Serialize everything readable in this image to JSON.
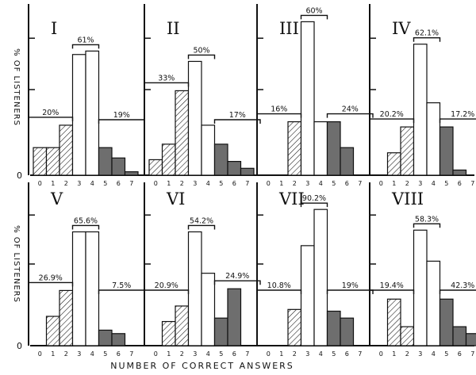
{
  "x_axis_label": "NUMBER OF CORRECT ANSWERS",
  "y_axis_label": "% OF LISTENERS",
  "y_zero_label": "0",
  "colors": {
    "ink": "#111111",
    "dark_bar": "#6e6e6e",
    "light_bar": "#ffffff"
  },
  "chart_data": [
    {
      "type": "bar",
      "title": "I",
      "categories": [
        "0",
        "1",
        "2",
        "3",
        "4",
        "5",
        "6",
        "7"
      ],
      "values": [
        8,
        8,
        14.5,
        35,
        36,
        8,
        5,
        1
      ],
      "annotations": [
        "20%",
        "61%",
        "19%"
      ]
    },
    {
      "type": "bar",
      "title": "II",
      "categories": [
        "0",
        "1",
        "2",
        "3",
        "4",
        "5",
        "6",
        "7"
      ],
      "values": [
        4.5,
        9,
        24.5,
        33,
        14.5,
        9,
        4,
        2
      ],
      "annotations": [
        "33%",
        "50%",
        "17%"
      ]
    },
    {
      "type": "bar",
      "title": "III",
      "categories": [
        "0",
        "1",
        "2",
        "3",
        "4",
        "5",
        "6",
        "7"
      ],
      "values": [
        0,
        0,
        15.5,
        44.5,
        15.5,
        15.5,
        8,
        0
      ],
      "annotations": [
        "16%",
        "60%",
        "24%"
      ]
    },
    {
      "type": "bar",
      "title": "IV",
      "categories": [
        "0",
        "1",
        "2",
        "3",
        "4",
        "5",
        "6",
        "7"
      ],
      "values": [
        0,
        6.5,
        14,
        38,
        21,
        14,
        1.5,
        0
      ],
      "annotations": [
        "20.2%",
        "62.1%",
        "17.2%"
      ]
    },
    {
      "type": "bar",
      "title": "V",
      "categories": [
        "0",
        "1",
        "2",
        "3",
        "4",
        "5",
        "6",
        "7"
      ],
      "values": [
        0,
        8.5,
        16,
        33,
        33,
        4.5,
        3.5,
        0
      ],
      "annotations": [
        "26.9%",
        "65.6%",
        "7.5%"
      ]
    },
    {
      "type": "bar",
      "title": "VI",
      "categories": [
        "0",
        "1",
        "2",
        "3",
        "4",
        "5",
        "6",
        "7"
      ],
      "values": [
        0,
        7,
        11.5,
        33,
        21,
        8,
        16.5,
        0
      ],
      "annotations": [
        "20.9%",
        "54.2%",
        "24.9%"
      ]
    },
    {
      "type": "bar",
      "title": "VII",
      "categories": [
        "0",
        "1",
        "2",
        "3",
        "4",
        "5",
        "6",
        "7"
      ],
      "values": [
        0,
        0,
        10.5,
        29,
        39.5,
        10,
        8,
        0
      ],
      "annotations": [
        "10.8%",
        "90.2%",
        "19%"
      ]
    },
    {
      "type": "bar",
      "title": "VIII",
      "categories": [
        "0",
        "1",
        "2",
        "3",
        "4",
        "5",
        "6",
        "7"
      ],
      "values": [
        0,
        13.5,
        5.5,
        33.5,
        24.5,
        13.5,
        5.5,
        3.5
      ],
      "annotations": [
        "19.4%",
        "58.3%",
        "42.3%"
      ]
    }
  ]
}
